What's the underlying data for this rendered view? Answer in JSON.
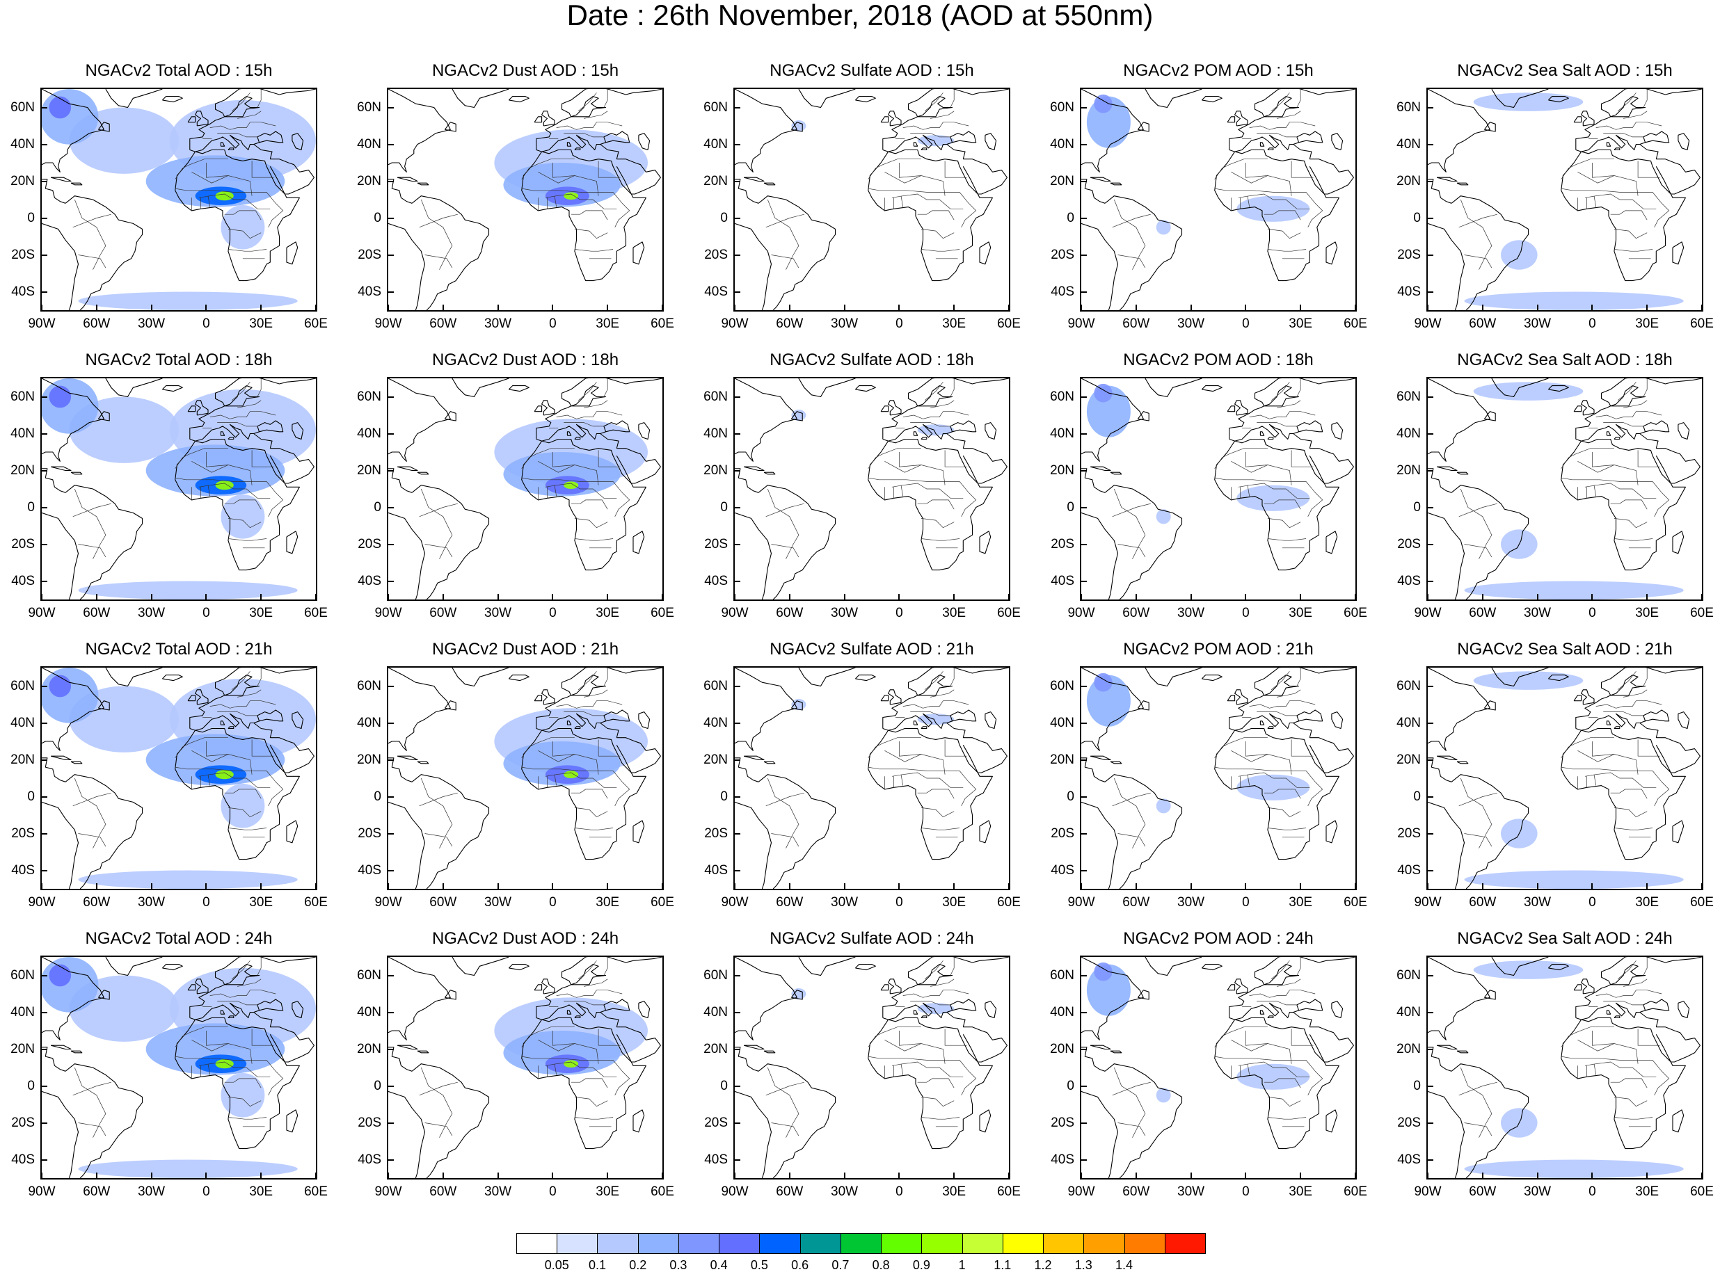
{
  "title": "Date : 26th November, 2018 (AOD at 550nm)",
  "species": [
    {
      "key": "total",
      "name": "NGACv2 Total AOD"
    },
    {
      "key": "dust",
      "name": "NGACv2 Dust AOD"
    },
    {
      "key": "sulfate",
      "name": "NGACv2 Sulfate AOD"
    },
    {
      "key": "pom",
      "name": "NGACv2 POM AOD"
    },
    {
      "key": "seasalt",
      "name": "NGACv2 Sea Salt AOD"
    }
  ],
  "hours": [
    "15h",
    "18h",
    "21h",
    "24h"
  ],
  "panel_titles": [
    [
      "NGACv2 Total AOD : 15h",
      "NGACv2 Dust AOD : 15h",
      "NGACv2 Sulfate AOD : 15h",
      "NGACv2 POM AOD : 15h",
      "NGACv2 Sea Salt AOD : 15h"
    ],
    [
      "NGACv2 Total AOD : 18h",
      "NGACv2 Dust AOD : 18h",
      "NGACv2 Sulfate AOD : 18h",
      "NGACv2 POM AOD : 18h",
      "NGACv2 Sea Salt AOD : 18h"
    ],
    [
      "NGACv2 Total AOD : 21h",
      "NGACv2 Dust AOD : 21h",
      "NGACv2 Sulfate AOD : 21h",
      "NGACv2 POM AOD : 21h",
      "NGACv2 Sea Salt AOD : 21h"
    ],
    [
      "NGACv2 Total AOD : 24h",
      "NGACv2 Dust AOD : 24h",
      "NGACv2 Sulfate AOD : 24h",
      "NGACv2 POM AOD : 24h",
      "NGACv2 Sea Salt  AOD : 24h"
    ]
  ],
  "map_extent": {
    "lon": [
      -90,
      60
    ],
    "lat": [
      -50,
      70
    ]
  },
  "lon_ticks": [
    {
      "value": -90,
      "label": "90W"
    },
    {
      "value": -60,
      "label": "60W"
    },
    {
      "value": -30,
      "label": "30W"
    },
    {
      "value": 0,
      "label": "0"
    },
    {
      "value": 30,
      "label": "30E"
    },
    {
      "value": 60,
      "label": "60E"
    }
  ],
  "lat_ticks": [
    {
      "value": 60,
      "label": "60N"
    },
    {
      "value": 40,
      "label": "40N"
    },
    {
      "value": 20,
      "label": "20N"
    },
    {
      "value": 0,
      "label": "0"
    },
    {
      "value": -20,
      "label": "20S"
    },
    {
      "value": -40,
      "label": "40S"
    }
  ],
  "colorbar": {
    "levels": [
      "0.05",
      "0.1",
      "0.2",
      "0.3",
      "0.4",
      "0.5",
      "0.6",
      "0.7",
      "0.8",
      "0.9",
      "1",
      "1.1",
      "1.2",
      "1.3",
      "1.4"
    ],
    "colors": [
      "#ffffff",
      "#d6e2ff",
      "#b5c9ff",
      "#8eb2ff",
      "#7f96ff",
      "#6370ff",
      "#0063ff",
      "#009696",
      "#00c633",
      "#63ff00",
      "#96ff00",
      "#c6ff33",
      "#ffff00",
      "#ffc600",
      "#ffa000",
      "#ff7c00",
      "#ff1900"
    ]
  },
  "aerosol_regions": {
    "total": [
      {
        "lon": -75,
        "lat": 55,
        "rlon": 16,
        "rlat": 15,
        "level": 0.2
      },
      {
        "lon": -80,
        "lat": 60,
        "rlon": 6,
        "rlat": 6,
        "level": 0.4
      },
      {
        "lon": -45,
        "lat": 42,
        "rlon": 30,
        "rlat": 18,
        "level": 0.1
      },
      {
        "lon": 20,
        "lat": 42,
        "rlon": 40,
        "rlat": 22,
        "level": 0.1
      },
      {
        "lon": 5,
        "lat": 20,
        "rlon": 38,
        "rlat": 14,
        "level": 0.2
      },
      {
        "lon": 8,
        "lat": 12,
        "rlon": 14,
        "rlat": 5,
        "level": 0.5
      },
      {
        "lon": 10,
        "lat": 12,
        "rlon": 5,
        "rlat": 2.5,
        "level": 0.9
      },
      {
        "lon": 20,
        "lat": -5,
        "rlon": 12,
        "rlat": 12,
        "level": 0.1
      },
      {
        "lon": -10,
        "lat": -45,
        "rlon": 60,
        "rlat": 5,
        "level": 0.1
      }
    ],
    "dust": [
      {
        "lon": 10,
        "lat": 30,
        "rlon": 42,
        "rlat": 18,
        "level": 0.1
      },
      {
        "lon": 5,
        "lat": 18,
        "rlon": 32,
        "rlat": 12,
        "level": 0.2
      },
      {
        "lon": 8,
        "lat": 12,
        "rlon": 12,
        "rlat": 5,
        "level": 0.4
      },
      {
        "lon": 10,
        "lat": 12,
        "rlon": 4,
        "rlat": 2,
        "level": 0.9
      }
    ],
    "sulfate": [
      {
        "lon": 20,
        "lat": 42,
        "rlon": 10,
        "rlat": 3,
        "level": 0.1
      },
      {
        "lon": -55,
        "lat": 50,
        "rlon": 4,
        "rlat": 3,
        "level": 0.1
      }
    ],
    "pom": [
      {
        "lon": -75,
        "lat": 52,
        "rlon": 12,
        "rlat": 14,
        "level": 0.2
      },
      {
        "lon": -78,
        "lat": 62,
        "rlon": 5,
        "rlat": 5,
        "level": 0.3
      },
      {
        "lon": 15,
        "lat": 5,
        "rlon": 20,
        "rlat": 7,
        "level": 0.1
      },
      {
        "lon": -45,
        "lat": -5,
        "rlon": 4,
        "rlat": 4,
        "level": 0.1
      }
    ],
    "seasalt": [
      {
        "lon": -35,
        "lat": 63,
        "rlon": 30,
        "rlat": 5,
        "level": 0.1
      },
      {
        "lon": -40,
        "lat": -20,
        "rlon": 10,
        "rlat": 8,
        "level": 0.1
      },
      {
        "lon": -10,
        "lat": -45,
        "rlon": 60,
        "rlat": 5,
        "level": 0.1
      }
    ]
  }
}
